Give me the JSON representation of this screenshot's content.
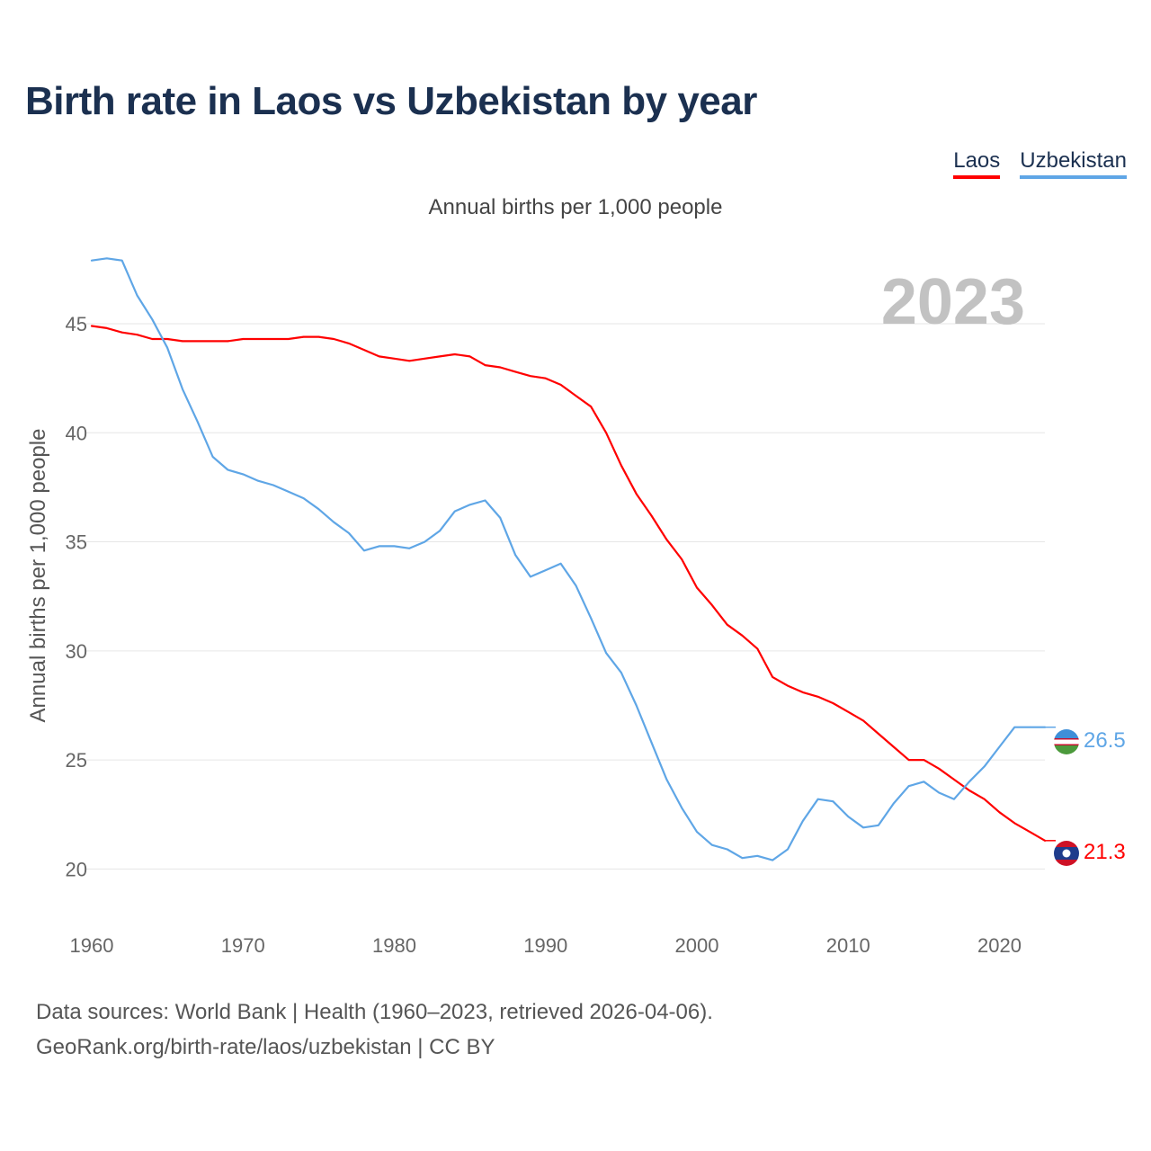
{
  "header": {
    "title": "Birth rate in Laos vs Uzbekistan by year",
    "subtitle": "Annual births per 1,000 people"
  },
  "legend": [
    {
      "label": "Laos",
      "color": "#ff0000"
    },
    {
      "label": "Uzbekistan",
      "color": "#5fa6e6"
    }
  ],
  "chart_data": {
    "type": "line",
    "title": "Birth rate in Laos vs Uzbekistan by year",
    "subtitle": "Annual births per 1,000 people",
    "xlabel": "",
    "ylabel": "Annual births per 1,000 people",
    "year_watermark": "2023",
    "xlim": [
      1960,
      2023
    ],
    "ylim": [
      18.2,
      48.3
    ],
    "x_ticks": [
      1960,
      1970,
      1980,
      1990,
      2000,
      2010,
      2020
    ],
    "y_ticks": [
      20,
      25,
      30,
      35,
      40,
      45
    ],
    "grid": true,
    "legend_position": "top-right",
    "x": [
      1960,
      1961,
      1962,
      1963,
      1964,
      1965,
      1966,
      1967,
      1968,
      1969,
      1970,
      1971,
      1972,
      1973,
      1974,
      1975,
      1976,
      1977,
      1978,
      1979,
      1980,
      1981,
      1982,
      1983,
      1984,
      1985,
      1986,
      1987,
      1988,
      1989,
      1990,
      1991,
      1992,
      1993,
      1994,
      1995,
      1996,
      1997,
      1998,
      1999,
      2000,
      2001,
      2002,
      2003,
      2004,
      2005,
      2006,
      2007,
      2008,
      2009,
      2010,
      2011,
      2012,
      2013,
      2014,
      2015,
      2016,
      2017,
      2018,
      2019,
      2020,
      2021,
      2022,
      2023
    ],
    "series": [
      {
        "name": "Laos",
        "color": "#ff0000",
        "end_label": "21.3",
        "values": [
          44.9,
          44.8,
          44.6,
          44.5,
          44.3,
          44.3,
          44.2,
          44.2,
          44.2,
          44.2,
          44.3,
          44.3,
          44.3,
          44.3,
          44.4,
          44.4,
          44.3,
          44.1,
          43.8,
          43.5,
          43.4,
          43.3,
          43.4,
          43.5,
          43.6,
          43.5,
          43.1,
          43.0,
          42.8,
          42.6,
          42.5,
          42.2,
          41.7,
          41.2,
          40.0,
          38.5,
          37.2,
          36.2,
          35.1,
          34.2,
          32.9,
          32.1,
          31.2,
          30.7,
          30.1,
          28.8,
          28.4,
          28.1,
          27.9,
          27.6,
          27.2,
          26.8,
          26.2,
          25.6,
          25.0,
          25.0,
          24.6,
          24.1,
          23.6,
          23.2,
          22.6,
          22.1,
          21.7,
          21.3
        ]
      },
      {
        "name": "Uzbekistan",
        "color": "#5fa6e6",
        "end_label": "26.5",
        "values": [
          47.9,
          48.0,
          47.9,
          46.3,
          45.2,
          43.9,
          42.0,
          40.5,
          38.9,
          38.3,
          38.1,
          37.8,
          37.6,
          37.3,
          37.0,
          36.5,
          35.9,
          35.4,
          34.6,
          34.8,
          34.8,
          34.7,
          35.0,
          35.5,
          36.4,
          36.7,
          36.9,
          36.1,
          34.4,
          33.4,
          33.7,
          34.0,
          33.0,
          31.5,
          29.9,
          29.0,
          27.5,
          25.8,
          24.1,
          22.8,
          21.7,
          21.1,
          20.9,
          20.5,
          20.6,
          20.4,
          20.9,
          22.2,
          23.2,
          23.1,
          22.4,
          21.9,
          22.0,
          23.0,
          23.8,
          24.0,
          23.5,
          23.2,
          24.0,
          24.7,
          25.6,
          26.5,
          26.5,
          26.5
        ]
      }
    ]
  },
  "footer": {
    "source_line1": "Data sources: World Bank | Health (1960–2023, retrieved 2026-04-06).",
    "source_line2": "GeoRank.org/birth-rate/laos/uzbekistan | CC BY"
  }
}
